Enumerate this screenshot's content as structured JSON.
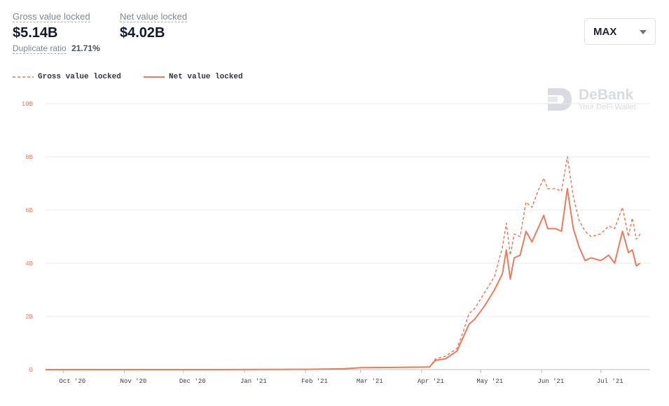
{
  "stats": {
    "gross_label": "Gross value locked",
    "gross_value": "$5.14B",
    "net_label": "Net value locked",
    "net_value": "$4.02B",
    "duplicate_label": "Duplicate ratio",
    "duplicate_value": "21.71%"
  },
  "range_select": {
    "value": "MAX"
  },
  "watermark": {
    "name": "DeBank",
    "tagline": "Your DeFi Wallet"
  },
  "colors": {
    "accent": "#f0795a",
    "axis_text": "#f0795a",
    "grid": "#e8eaee"
  },
  "chart_data": {
    "type": "line",
    "ylim": [
      0,
      10
    ],
    "xlim": [
      "2020-09-22",
      "2021-07-26"
    ],
    "yticks": [
      0,
      2,
      4,
      6,
      8,
      10
    ],
    "ytick_labels": [
      "0",
      "2B",
      "4B",
      "6B",
      "8B",
      "10B"
    ],
    "xticks": [
      "2020-10-01",
      "2020-11-01",
      "2020-12-01",
      "2021-01-01",
      "2021-02-01",
      "2021-03-01",
      "2021-04-01",
      "2021-05-01",
      "2021-06-01",
      "2021-07-01"
    ],
    "xtick_labels": [
      "Oct '20",
      "Nov '20",
      "Dec '20",
      "Jan '21",
      "Feb '21",
      "Mar '21",
      "Apr '21",
      "May '21",
      "Jun '21",
      "Jul '21"
    ],
    "grid": true,
    "legend_position": "top-left",
    "series": [
      {
        "name": "Gross value locked",
        "style": "dashed",
        "points": [
          [
            "2020-09-22",
            0.0
          ],
          [
            "2020-12-15",
            0.0
          ],
          [
            "2021-02-01",
            0.01
          ],
          [
            "2021-02-20",
            0.03
          ],
          [
            "2021-03-01",
            0.07
          ],
          [
            "2021-03-15",
            0.08
          ],
          [
            "2021-04-05",
            0.1
          ],
          [
            "2021-04-08",
            0.4
          ],
          [
            "2021-04-13",
            0.5
          ],
          [
            "2021-04-19",
            0.8
          ],
          [
            "2021-04-22",
            1.4
          ],
          [
            "2021-04-25",
            2.1
          ],
          [
            "2021-04-28",
            2.3
          ],
          [
            "2021-05-03",
            2.9
          ],
          [
            "2021-05-08",
            3.5
          ],
          [
            "2021-05-12",
            4.6
          ],
          [
            "2021-05-14",
            5.5
          ],
          [
            "2021-05-16",
            4.3
          ],
          [
            "2021-05-18",
            5.1
          ],
          [
            "2021-05-21",
            5.0
          ],
          [
            "2021-05-24",
            6.3
          ],
          [
            "2021-05-27",
            6.1
          ],
          [
            "2021-05-30",
            6.7
          ],
          [
            "2021-06-02",
            7.2
          ],
          [
            "2021-06-04",
            6.8
          ],
          [
            "2021-06-08",
            6.8
          ],
          [
            "2021-06-11",
            6.7
          ],
          [
            "2021-06-14",
            8.0
          ],
          [
            "2021-06-17",
            6.5
          ],
          [
            "2021-06-20",
            5.6
          ],
          [
            "2021-06-23",
            5.2
          ],
          [
            "2021-06-26",
            5.0
          ],
          [
            "2021-07-01",
            5.1
          ],
          [
            "2021-07-05",
            5.4
          ],
          [
            "2021-07-08",
            5.3
          ],
          [
            "2021-07-12",
            6.1
          ],
          [
            "2021-07-15",
            5.0
          ],
          [
            "2021-07-17",
            5.7
          ],
          [
            "2021-07-19",
            4.9
          ],
          [
            "2021-07-21",
            5.1
          ]
        ]
      },
      {
        "name": "Net value locked",
        "style": "solid",
        "points": [
          [
            "2020-09-22",
            0.0
          ],
          [
            "2020-12-15",
            0.0
          ],
          [
            "2021-02-01",
            0.01
          ],
          [
            "2021-02-20",
            0.03
          ],
          [
            "2021-03-01",
            0.07
          ],
          [
            "2021-03-15",
            0.08
          ],
          [
            "2021-04-05",
            0.1
          ],
          [
            "2021-04-08",
            0.35
          ],
          [
            "2021-04-13",
            0.4
          ],
          [
            "2021-04-19",
            0.7
          ],
          [
            "2021-04-22",
            1.2
          ],
          [
            "2021-04-25",
            1.7
          ],
          [
            "2021-04-28",
            1.9
          ],
          [
            "2021-05-03",
            2.4
          ],
          [
            "2021-05-08",
            3.0
          ],
          [
            "2021-05-12",
            3.6
          ],
          [
            "2021-05-14",
            4.5
          ],
          [
            "2021-05-16",
            3.4
          ],
          [
            "2021-05-18",
            4.2
          ],
          [
            "2021-05-21",
            4.3
          ],
          [
            "2021-05-24",
            5.2
          ],
          [
            "2021-05-27",
            4.8
          ],
          [
            "2021-05-30",
            5.3
          ],
          [
            "2021-06-02",
            5.8
          ],
          [
            "2021-06-04",
            5.3
          ],
          [
            "2021-06-08",
            5.3
          ],
          [
            "2021-06-11",
            5.2
          ],
          [
            "2021-06-14",
            6.8
          ],
          [
            "2021-06-17",
            5.3
          ],
          [
            "2021-06-20",
            4.6
          ],
          [
            "2021-06-23",
            4.1
          ],
          [
            "2021-06-26",
            4.2
          ],
          [
            "2021-07-01",
            4.1
          ],
          [
            "2021-07-05",
            4.3
          ],
          [
            "2021-07-08",
            4.0
          ],
          [
            "2021-07-12",
            5.2
          ],
          [
            "2021-07-15",
            4.4
          ],
          [
            "2021-07-17",
            4.5
          ],
          [
            "2021-07-19",
            3.9
          ],
          [
            "2021-07-21",
            4.0
          ]
        ]
      }
    ]
  }
}
